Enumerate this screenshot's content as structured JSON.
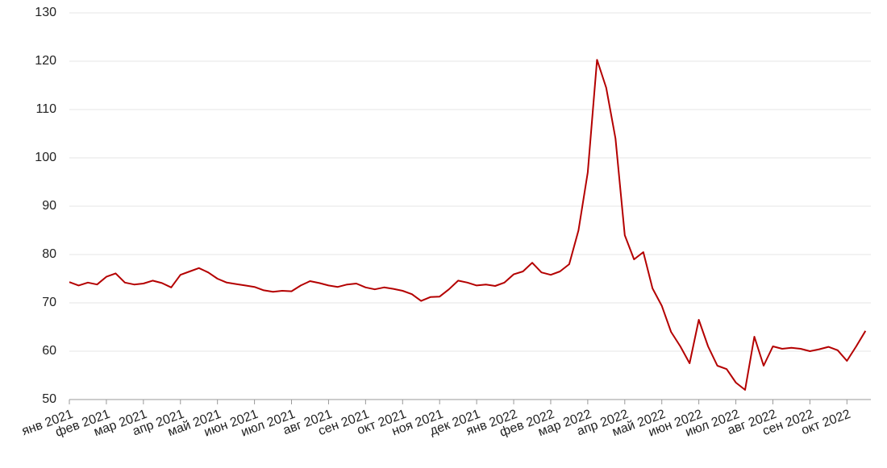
{
  "chart_data": {
    "type": "line",
    "color": "#b40000",
    "grid": true,
    "ylim": [
      50,
      130
    ],
    "yticks": [
      50,
      60,
      70,
      80,
      90,
      100,
      110,
      120,
      130
    ],
    "categories": [
      "янв 2021",
      null,
      null,
      null,
      "фев 2021",
      null,
      null,
      null,
      "мар 2021",
      null,
      null,
      null,
      "апр 2021",
      null,
      null,
      null,
      "май 2021",
      null,
      null,
      null,
      "июн 2021",
      null,
      null,
      null,
      "июл 2021",
      null,
      null,
      null,
      "авг 2021",
      null,
      null,
      null,
      "сен 2021",
      null,
      null,
      null,
      "окт 2021",
      null,
      null,
      null,
      "ноя 2021",
      null,
      null,
      null,
      "дек 2021",
      null,
      null,
      null,
      "янв 2022",
      null,
      null,
      null,
      "фев 2022",
      null,
      null,
      null,
      "мар 2022",
      null,
      null,
      null,
      "апр 2022",
      null,
      null,
      null,
      "май 2022",
      null,
      null,
      null,
      "июн 2022",
      null,
      null,
      null,
      "июл 2022",
      null,
      null,
      null,
      "авг 2022",
      null,
      null,
      null,
      "сен 2022",
      null,
      null,
      null,
      "окт 2022",
      null,
      null
    ],
    "values": [
      74.3,
      73.6,
      74.2,
      73.8,
      75.4,
      76.1,
      74.2,
      73.8,
      74.0,
      74.6,
      74.1,
      73.2,
      75.8,
      76.5,
      77.2,
      76.3,
      75.0,
      74.2,
      73.9,
      73.6,
      73.3,
      72.6,
      72.3,
      72.5,
      72.4,
      73.6,
      74.5,
      74.1,
      73.6,
      73.3,
      73.8,
      74.0,
      73.2,
      72.8,
      73.2,
      72.9,
      72.5,
      71.8,
      70.4,
      71.2,
      71.3,
      72.8,
      74.6,
      74.2,
      73.6,
      73.8,
      73.5,
      74.2,
      75.9,
      76.5,
      78.3,
      76.3,
      75.8,
      76.5,
      78.0,
      85.0,
      97.0,
      120.3,
      114.5,
      104.0,
      84.0,
      79.0,
      80.5,
      73.0,
      69.4,
      64.0,
      61.0,
      57.5,
      66.5,
      61.0,
      57.0,
      56.3,
      53.5,
      52.0,
      63.0,
      57.0,
      61.0,
      60.5,
      60.7,
      60.5,
      60.0,
      60.4,
      60.9,
      60.2,
      58.0,
      61.0,
      64.2
    ]
  }
}
